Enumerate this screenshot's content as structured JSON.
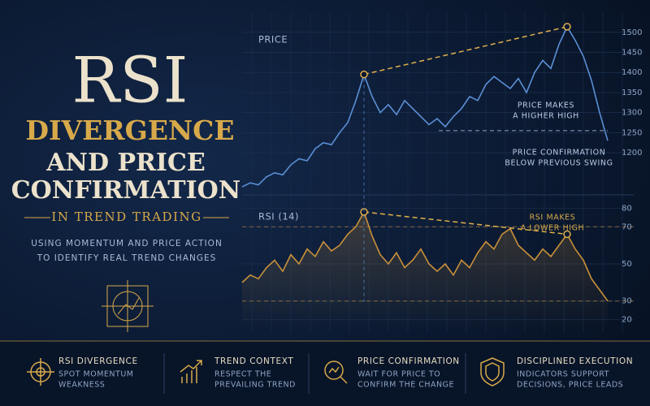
{
  "header": {
    "title": "RSI",
    "title_line2": "DIVERGENCE",
    "title_line3": "AND PRICE",
    "title_line4": "CONFIRMATION",
    "tagline": "IN TREND TRADING",
    "subtitle_lines": [
      "USING MOMENTUM AND PRICE ACTION",
      "TO IDENTIFY REAL TREND CHANGES"
    ]
  },
  "chart_data": [
    {
      "type": "line",
      "title": "PRICE",
      "color": "#5b8fd6",
      "grid": true,
      "ylim": [
        1095,
        1540
      ],
      "yticks": [
        1200,
        1250,
        1300,
        1350,
        1400,
        1450,
        1500
      ],
      "values": [
        1115,
        1125,
        1120,
        1140,
        1150,
        1145,
        1170,
        1185,
        1180,
        1210,
        1225,
        1220,
        1250,
        1275,
        1330,
        1395,
        1340,
        1300,
        1320,
        1295,
        1330,
        1310,
        1290,
        1270,
        1285,
        1265,
        1290,
        1310,
        1340,
        1330,
        1370,
        1390,
        1375,
        1360,
        1385,
        1350,
        1400,
        1430,
        1410,
        1470,
        1514,
        1480,
        1440,
        1380,
        1300,
        1230
      ],
      "confirmation_level": 1255,
      "annotations": [
        [
          "PRICE MAKES",
          "A HIGHER HIGH"
        ],
        [
          "PRICE CONFIRMATION",
          "BELOW PREVIOUS SWING"
        ]
      ]
    },
    {
      "type": "line",
      "title": "RSI (14)",
      "color": "#c9913a",
      "grid": true,
      "ylim": [
        15,
        85
      ],
      "yticks": [
        20,
        30,
        50,
        70,
        80
      ],
      "levels": [
        70,
        30
      ],
      "values": [
        40,
        44,
        42,
        48,
        52,
        46,
        55,
        50,
        58,
        54,
        62,
        57,
        60,
        66,
        70,
        78,
        65,
        55,
        50,
        56,
        48,
        52,
        58,
        50,
        46,
        50,
        44,
        52,
        48,
        56,
        62,
        58,
        66,
        69,
        60,
        56,
        52,
        58,
        54,
        60,
        66,
        58,
        52,
        42,
        36,
        30
      ],
      "annotations": [
        [
          "RSI MAKES",
          "A LOWER HIGH"
        ]
      ]
    }
  ],
  "footer": [
    {
      "title": "RSI DIVERGENCE",
      "lines": [
        "SPOT MOMENTUM",
        "WEAKNESS"
      ]
    },
    {
      "title": "TREND CONTEXT",
      "lines": [
        "RESPECT THE",
        "PREVAILING TREND"
      ]
    },
    {
      "title": "PRICE CONFIRMATION",
      "lines": [
        "WAIT FOR PRICE TO",
        "CONFIRM THE CHANGE"
      ]
    },
    {
      "title": "DISCIPLINED EXECUTION",
      "lines": [
        "INDICATORS SUPPORT",
        "DECISIONS, PRICE LEADS"
      ]
    }
  ]
}
